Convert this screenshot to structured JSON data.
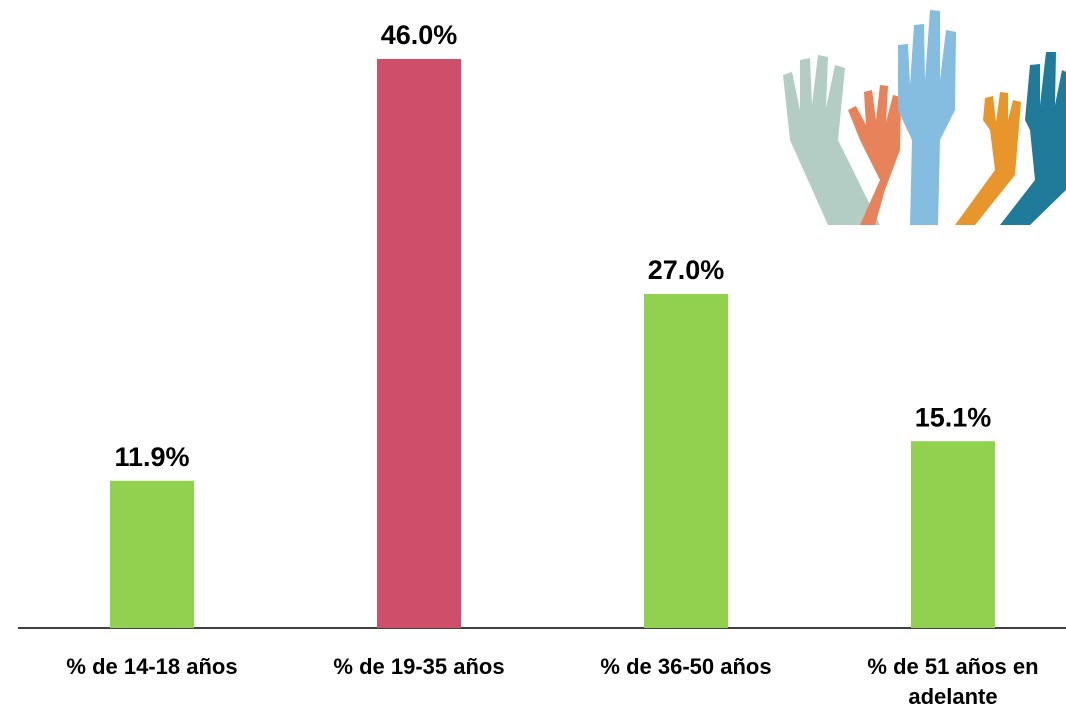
{
  "chart_data": {
    "type": "bar",
    "categories": [
      "% de 14-18 años",
      "% de 19-35 años",
      "% de 36-50 años",
      "% de 51 años en adelante"
    ],
    "values": [
      11.9,
      46.0,
      27.0,
      15.1
    ],
    "value_labels": [
      "11.9%",
      "46.0%",
      "27.0%",
      "15.1%"
    ],
    "colors": [
      "#92d050",
      "#cf4f6a",
      "#92d050",
      "#92d050"
    ]
  }
}
